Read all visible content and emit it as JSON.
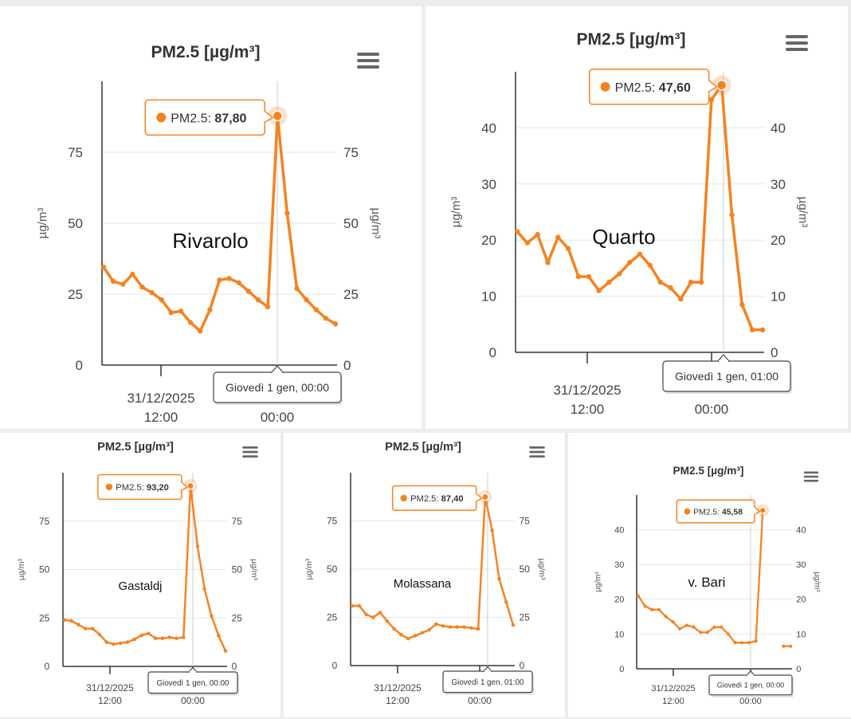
{
  "colors": {
    "series": "#f58220",
    "grid": "#e6e6e6",
    "axis": "#333333",
    "panel": "#ffffff",
    "background": "#ececec"
  },
  "chart_data": [
    {
      "type": "line",
      "title": "PM2.5 [µg/m³]",
      "location_label": "Rivarolo",
      "ylabel_left": "µg/m³",
      "ylabel_right": "µg/m³",
      "ylim": [
        0,
        100
      ],
      "yticks": [
        0,
        25,
        50,
        75
      ],
      "xticks": [
        {
          "label": "31/12/2025",
          "label2": "12:00"
        },
        {
          "label": "00:00",
          "label2": ""
        }
      ],
      "series": [
        {
          "name": "PM2.5",
          "values": [
            34.5,
            29.5,
            28.5,
            32,
            27.5,
            25.5,
            23,
            18.5,
            19,
            15,
            12,
            19.5,
            30,
            30.5,
            29,
            26,
            23,
            20.5,
            87.8,
            53.5,
            27,
            23,
            19.5,
            16.5,
            14.5
          ]
        }
      ],
      "tooltip": {
        "series": "PM2.5",
        "value": "87,80",
        "time": "Giovedì 1 gen, 00:00"
      },
      "menu_icon": "hamburger-menu-icon"
    },
    {
      "type": "line",
      "title": "PM2.5 [µg/m³]",
      "location_label": "Quarto",
      "ylabel_left": "µg/m³",
      "ylabel_right": "µg/m³",
      "ylim": [
        0,
        50
      ],
      "yticks": [
        0,
        10,
        20,
        30,
        40
      ],
      "xticks": [
        {
          "label": "31/12/2025",
          "label2": "12:00"
        },
        {
          "label": "00:00",
          "label2": ""
        }
      ],
      "series": [
        {
          "name": "PM2.5",
          "values": [
            21.5,
            19.5,
            21,
            16,
            20.5,
            18.5,
            13.5,
            13.5,
            11,
            12.5,
            14,
            16,
            17.5,
            15.5,
            12.5,
            11.5,
            9.5,
            12.5,
            12.5,
            45,
            47.6,
            24.5,
            8.5,
            4,
            4
          ]
        }
      ],
      "tooltip": {
        "series": "PM2.5",
        "value": "47,60",
        "time": "Giovedì 1 gen, 01:00"
      },
      "menu_icon": "hamburger-menu-icon"
    },
    {
      "type": "line",
      "title": "PM2.5 [µg/m³]",
      "location_label": "Gastaldj",
      "ylabel_left": "µg/m³",
      "ylabel_right": "µg/m³",
      "ylim": [
        0,
        100
      ],
      "yticks": [
        0,
        25,
        50,
        75
      ],
      "xticks": [
        {
          "label": "31/12/2025",
          "label2": "12:00"
        },
        {
          "label": "00:00",
          "label2": ""
        }
      ],
      "series": [
        {
          "name": "PM2.5",
          "values": [
            24,
            23.5,
            21.5,
            19.5,
            19.5,
            16.5,
            12.5,
            11.5,
            12,
            12.5,
            14,
            16,
            17,
            14.5,
            14.5,
            15,
            14.5,
            15,
            93.2,
            62,
            40,
            26,
            16,
            8
          ]
        }
      ],
      "tooltip": {
        "series": "PM2.5",
        "value": "93,20",
        "time": "Giovedì 1 gen, 00:00"
      },
      "menu_icon": "hamburger-menu-icon"
    },
    {
      "type": "line",
      "title": "PM2.5 [µg/m³]",
      "location_label": "Molassana",
      "ylabel_left": "µg/m³",
      "ylabel_right": "µg/m³",
      "ylim": [
        0,
        100
      ],
      "yticks": [
        0,
        25,
        50,
        75
      ],
      "xticks": [
        {
          "label": "31/12/2025",
          "label2": "12:00"
        },
        {
          "label": "00:00",
          "label2": ""
        }
      ],
      "series": [
        {
          "name": "PM2.5",
          "values": [
            31,
            31,
            26.5,
            25,
            27.5,
            23,
            19,
            16,
            14,
            15.5,
            17,
            18.5,
            21.5,
            20.5,
            20,
            20,
            20,
            19.5,
            19,
            87.4,
            70,
            45,
            33,
            21
          ]
        }
      ],
      "tooltip": {
        "series": "PM2.5",
        "value": "87,40",
        "time": "Giovedì 1 gen, 01:00"
      },
      "menu_icon": "hamburger-menu-icon"
    },
    {
      "type": "line",
      "title": "PM2.5 [µg/m³]",
      "location_label": "v. Bari",
      "ylabel_left": "µg/m³",
      "ylabel_right": "µg/m³",
      "ylim": [
        0,
        50
      ],
      "yticks": [
        0,
        10,
        20,
        30,
        40
      ],
      "xticks": [
        {
          "label": "31/12/2025",
          "label2": "12:00"
        },
        {
          "label": "00:00",
          "label2": ""
        }
      ],
      "series": [
        {
          "name": "PM2.5",
          "values": [
            21,
            18,
            17,
            17,
            15,
            13.5,
            11.5,
            12.5,
            12,
            10.5,
            10.5,
            12,
            12,
            10,
            7.5,
            7.5,
            7.5,
            8,
            45.58,
            null,
            null,
            6.5,
            6.5
          ]
        }
      ],
      "tooltip": {
        "series": "PM2.5",
        "value": "45,58",
        "time": "Giovedì 1 gen, 00:00"
      },
      "menu_icon": "hamburger-menu-icon"
    }
  ]
}
